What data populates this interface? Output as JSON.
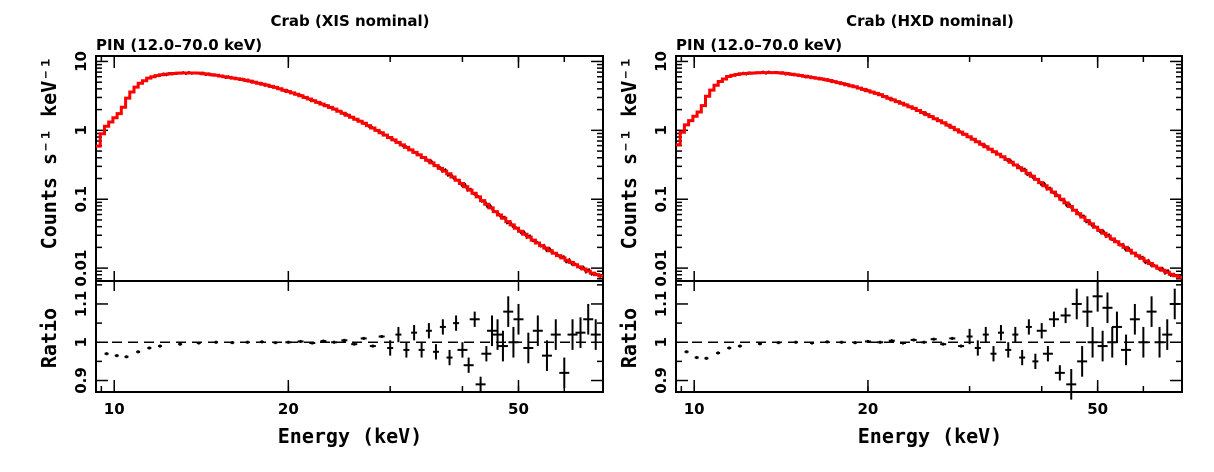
{
  "chart_data": [
    {
      "type": "line",
      "title": "Crab (XIS nominal)",
      "subtitle": "PIN (12.0–70.0 keV)",
      "xlabel": "Energy (keV)",
      "ylabel_top": "Counts s⁻¹ keV⁻¹",
      "ylabel_bottom": "Ratio",
      "x_scale": "log",
      "xlim": [
        9.3,
        70
      ],
      "x_ticks": [
        {
          "v": 10,
          "label": "10"
        },
        {
          "v": 20,
          "label": "20"
        },
        {
          "v": 50,
          "label": "50"
        }
      ],
      "top": {
        "y_scale": "log",
        "ylim": [
          0.0065,
          12
        ],
        "y_ticks": [
          {
            "v": 10,
            "label": "10"
          },
          {
            "v": 1,
            "label": "1"
          },
          {
            "v": 0.1,
            "label": "0.1"
          },
          {
            "v": 0.01,
            "label": "0.01"
          }
        ],
        "model": [
          [
            9.3,
            0.48
          ],
          [
            9.6,
            1.05
          ],
          [
            10.3,
            1.9
          ],
          [
            10.6,
            3.2
          ],
          [
            11,
            4.6
          ],
          [
            11.5,
            5.8
          ],
          [
            12,
            6.4
          ],
          [
            13,
            6.8
          ],
          [
            14,
            6.8
          ],
          [
            15,
            6.3
          ],
          [
            17,
            5.3
          ],
          [
            19,
            4.2
          ],
          [
            21,
            3.2
          ],
          [
            24,
            2.05
          ],
          [
            27,
            1.28
          ],
          [
            30,
            0.78
          ],
          [
            34,
            0.42
          ],
          [
            38,
            0.23
          ],
          [
            42,
            0.12
          ],
          [
            46,
            0.062
          ],
          [
            50,
            0.036
          ],
          [
            54,
            0.023
          ],
          [
            58,
            0.016
          ],
          [
            63,
            0.011
          ],
          [
            67,
            0.0085
          ],
          [
            70,
            0.0075
          ]
        ]
      },
      "bottom": {
        "y_scale": "linear",
        "ylim": [
          0.87,
          1.16
        ],
        "y_ticks": [
          {
            "v": 0.9,
            "label": "0.9"
          },
          {
            "v": 1,
            "label": "1"
          },
          {
            "v": 1.1,
            "label": "1.1"
          }
        ],
        "reference_line": 1,
        "ratio": [
          [
            9.7,
            0.97
          ],
          [
            10.1,
            0.965
          ],
          [
            10.5,
            0.962
          ],
          [
            11,
            0.975
          ],
          [
            11.5,
            0.985
          ],
          [
            12,
            0.99
          ],
          [
            13,
            0.995
          ],
          [
            14,
            0.998
          ],
          [
            15,
            1.0
          ],
          [
            16,
            0.999
          ],
          [
            17,
            1.0
          ],
          [
            18,
            1.001
          ],
          [
            19,
            0.999
          ],
          [
            20,
            1.0
          ],
          [
            21,
            1.002
          ],
          [
            22,
            0.998
          ],
          [
            23,
            1.003
          ],
          [
            24,
            1.0
          ],
          [
            25,
            1.005
          ],
          [
            26,
            0.995
          ],
          [
            27,
            1.01
          ],
          [
            28,
            0.99
          ],
          [
            29,
            1.015
          ],
          [
            30,
            0.985
          ],
          [
            31,
            1.02
          ],
          [
            32,
            0.98
          ],
          [
            33,
            1.025
          ],
          [
            34,
            0.98
          ],
          [
            35,
            1.03
          ],
          [
            36,
            0.975
          ],
          [
            37,
            1.04
          ],
          [
            38,
            0.96
          ],
          [
            39,
            1.05
          ],
          [
            40,
            0.98
          ],
          [
            41,
            0.94
          ],
          [
            42,
            1.06
          ],
          [
            43,
            0.89
          ],
          [
            44,
            0.97
          ],
          [
            45,
            1.03
          ],
          [
            46,
            1.02
          ],
          [
            47,
            0.99
          ],
          [
            48,
            1.08
          ],
          [
            49,
            1.0
          ],
          [
            50,
            1.06
          ],
          [
            52,
            0.985
          ],
          [
            54,
            1.03
          ],
          [
            56,
            0.965
          ],
          [
            58,
            1.02
          ],
          [
            60,
            0.92
          ],
          [
            62,
            1.02
          ],
          [
            64,
            1.025
          ],
          [
            66,
            1.06
          ],
          [
            68,
            1.02
          ]
        ]
      },
      "colors": {
        "model": "#ff0000",
        "data": "#000000"
      }
    },
    {
      "type": "line",
      "title": "Crab (HXD nominal)",
      "subtitle": "PIN (12.0–70.0 keV)",
      "xlabel": "Energy (keV)",
      "ylabel_top": "Counts s⁻¹ keV⁻¹",
      "ylabel_bottom": "Ratio",
      "x_scale": "log",
      "xlim": [
        9.3,
        70
      ],
      "x_ticks": [
        {
          "v": 10,
          "label": "10"
        },
        {
          "v": 20,
          "label": "20"
        },
        {
          "v": 50,
          "label": "50"
        }
      ],
      "top": {
        "y_scale": "log",
        "ylim": [
          0.0065,
          12
        ],
        "y_ticks": [
          {
            "v": 10,
            "label": "10"
          },
          {
            "v": 1,
            "label": "1"
          },
          {
            "v": 0.1,
            "label": "0.1"
          },
          {
            "v": 0.01,
            "label": "0.01"
          }
        ],
        "model": [
          [
            9.3,
            0.5
          ],
          [
            9.6,
            1.1
          ],
          [
            10.3,
            2.0
          ],
          [
            10.6,
            3.4
          ],
          [
            11,
            4.9
          ],
          [
            11.5,
            6.1
          ],
          [
            12,
            6.6
          ],
          [
            13,
            6.9
          ],
          [
            14,
            6.9
          ],
          [
            15,
            6.4
          ],
          [
            17,
            5.4
          ],
          [
            19,
            4.3
          ],
          [
            21,
            3.3
          ],
          [
            24,
            2.1
          ],
          [
            27,
            1.3
          ],
          [
            30,
            0.8
          ],
          [
            34,
            0.43
          ],
          [
            38,
            0.235
          ],
          [
            42,
            0.125
          ],
          [
            46,
            0.065
          ],
          [
            50,
            0.037
          ],
          [
            54,
            0.024
          ],
          [
            58,
            0.016
          ],
          [
            63,
            0.0105
          ],
          [
            67,
            0.0082
          ],
          [
            70,
            0.0072
          ]
        ]
      },
      "bottom": {
        "y_scale": "linear",
        "ylim": [
          0.87,
          1.16
        ],
        "y_ticks": [
          {
            "v": 0.9,
            "label": "0.9"
          },
          {
            "v": 1,
            "label": "1"
          },
          {
            "v": 1.1,
            "label": "1.1"
          }
        ],
        "reference_line": 1,
        "ratio": [
          [
            9.7,
            0.975
          ],
          [
            10.1,
            0.96
          ],
          [
            10.5,
            0.958
          ],
          [
            11,
            0.972
          ],
          [
            11.5,
            0.985
          ],
          [
            12,
            0.99
          ],
          [
            13,
            0.996
          ],
          [
            14,
            0.999
          ],
          [
            15,
            1.0
          ],
          [
            16,
            0.998
          ],
          [
            17,
            1.001
          ],
          [
            18,
            1.0
          ],
          [
            19,
            0.999
          ],
          [
            20,
            1.002
          ],
          [
            21,
            1.0
          ],
          [
            22,
            1.004
          ],
          [
            23,
            0.998
          ],
          [
            24,
            1.006
          ],
          [
            25,
            1.0
          ],
          [
            26,
            1.008
          ],
          [
            27,
            0.995
          ],
          [
            28,
            1.01
          ],
          [
            29,
            0.99
          ],
          [
            30,
            1.015
          ],
          [
            31,
            0.985
          ],
          [
            32,
            1.02
          ],
          [
            33,
            0.97
          ],
          [
            34,
            1.025
          ],
          [
            35,
            0.98
          ],
          [
            36,
            1.02
          ],
          [
            37,
            0.96
          ],
          [
            38,
            1.04
          ],
          [
            39,
            0.95
          ],
          [
            40,
            1.03
          ],
          [
            41,
            0.97
          ],
          [
            42,
            1.06
          ],
          [
            43,
            0.92
          ],
          [
            44,
            1.07
          ],
          [
            45,
            0.89
          ],
          [
            46,
            1.1
          ],
          [
            47,
            0.95
          ],
          [
            48,
            1.08
          ],
          [
            49,
            1.0
          ],
          [
            50,
            1.12
          ],
          [
            51,
            0.99
          ],
          [
            52,
            1.09
          ],
          [
            53,
            1.0
          ],
          [
            54,
            1.04
          ],
          [
            56,
            0.98
          ],
          [
            58,
            1.06
          ],
          [
            60,
            1.0
          ],
          [
            62,
            1.08
          ],
          [
            64,
            1.0
          ],
          [
            66,
            1.02
          ],
          [
            68,
            1.1
          ]
        ]
      },
      "colors": {
        "model": "#ff0000",
        "data": "#000000"
      }
    }
  ]
}
